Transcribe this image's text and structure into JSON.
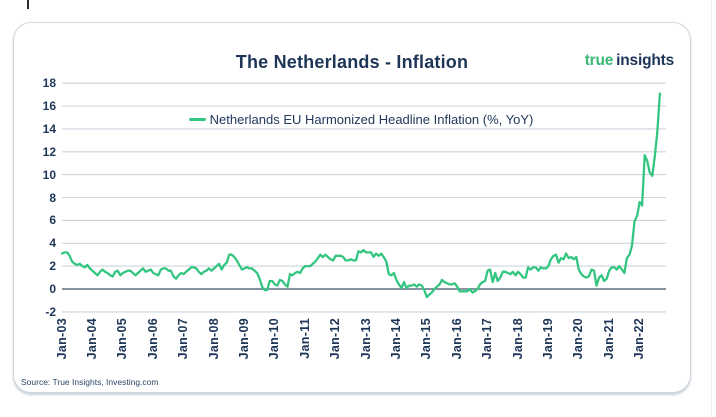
{
  "card": {
    "title": "The Netherlands - Inflation",
    "logo": {
      "word1": "true",
      "word2": "insights"
    },
    "source_note": "Source: True Insights, Investing.com"
  },
  "colors": {
    "line_green": "#34c681",
    "logo_green": "#3cb878",
    "navy": "#1d3557",
    "grid": "#ccd4dd",
    "zero_line": "#5f7082",
    "card_border": "#cfd6de"
  },
  "chart_data": {
    "type": "line",
    "title": "The Netherlands - Inflation",
    "xlabel": "",
    "ylabel": "",
    "ylim": [
      -2,
      18
    ],
    "y_ticks": [
      18,
      16,
      14,
      12,
      10,
      8,
      6,
      4,
      2,
      0,
      -2
    ],
    "grid": "horizontal",
    "legend_position": "top-center",
    "x_tick_labels": [
      "Jan-03",
      "Jan-04",
      "Jan-05",
      "Jan-06",
      "Jan-07",
      "Jan-08",
      "Jan-09",
      "Jan-10",
      "Jan-11",
      "Jan-12",
      "Jan-13",
      "Jan-14",
      "Jan-15",
      "Jan-16",
      "Jan-17",
      "Jan-18",
      "Jan-19",
      "Jan-20",
      "Jan-21",
      "Jan-22"
    ],
    "frequency": "monthly",
    "x_start": "Jan-03",
    "x_end": "Sep-22",
    "series": [
      {
        "name": "Netherlands EU Harmonized Headline Inflation (%, YoY)",
        "values": [
          3.1,
          3.2,
          3.2,
          2.9,
          2.4,
          2.2,
          2.1,
          2.2,
          2.0,
          1.9,
          2.1,
          1.8,
          1.6,
          1.4,
          1.2,
          1.5,
          1.7,
          1.5,
          1.4,
          1.2,
          1.1,
          1.5,
          1.6,
          1.2,
          1.4,
          1.5,
          1.6,
          1.6,
          1.4,
          1.2,
          1.4,
          1.6,
          1.8,
          1.5,
          1.6,
          1.7,
          1.4,
          1.3,
          1.2,
          1.7,
          1.8,
          1.8,
          1.6,
          1.6,
          1.1,
          0.9,
          1.2,
          1.4,
          1.3,
          1.5,
          1.7,
          1.9,
          1.9,
          1.8,
          1.5,
          1.3,
          1.5,
          1.6,
          1.8,
          1.6,
          1.8,
          2.0,
          2.2,
          1.7,
          2.1,
          2.3,
          3.0,
          3.0,
          2.8,
          2.5,
          2.1,
          1.7,
          1.8,
          1.9,
          1.8,
          1.8,
          1.6,
          1.4,
          0.9,
          0.2,
          -0.1,
          -0.1,
          0.7,
          0.7,
          0.4,
          0.3,
          0.8,
          0.7,
          0.4,
          0.2,
          1.3,
          1.2,
          1.4,
          1.5,
          1.4,
          1.8,
          2.0,
          2.0,
          2.0,
          2.2,
          2.4,
          2.7,
          3.0,
          2.8,
          3.0,
          2.8,
          2.6,
          2.5,
          2.9,
          2.9,
          2.9,
          2.8,
          2.5,
          2.5,
          2.6,
          2.5,
          2.5,
          3.3,
          3.2,
          3.4,
          3.2,
          3.2,
          3.2,
          2.8,
          3.1,
          2.9,
          3.1,
          2.8,
          2.4,
          1.3,
          1.2,
          1.4,
          0.8,
          0.4,
          0.1,
          0.6,
          0.1,
          0.3,
          0.3,
          0.4,
          0.2,
          0.4,
          0.3,
          -0.1,
          -0.7,
          -0.5,
          -0.3,
          0.0,
          0.2,
          0.4,
          0.8,
          0.6,
          0.5,
          0.4,
          0.4,
          0.5,
          0.2,
          -0.2,
          -0.2,
          -0.2,
          -0.2,
          0.0,
          -0.3,
          -0.2,
          0.0,
          0.4,
          0.6,
          0.7,
          1.6,
          1.7,
          0.6,
          1.4,
          0.7,
          1.0,
          1.5,
          1.5,
          1.4,
          1.3,
          1.5,
          1.2,
          1.5,
          1.3,
          1.0,
          1.0,
          1.9,
          1.7,
          1.9,
          1.9,
          1.6,
          1.9,
          1.8,
          1.8,
          2.0,
          2.6,
          2.9,
          3.0,
          2.3,
          2.7,
          2.6,
          3.1,
          2.7,
          2.8,
          2.6,
          2.8,
          1.7,
          1.3,
          1.1,
          1.0,
          1.1,
          1.7,
          1.6,
          0.3,
          1.0,
          1.2,
          0.7,
          0.9,
          1.6,
          1.9,
          1.9,
          1.7,
          2.0,
          1.7,
          1.4,
          2.7,
          3.0,
          3.8,
          5.9,
          6.4,
          7.6,
          7.3,
          11.7,
          11.2,
          10.2,
          9.9,
          11.6,
          13.7,
          17.1
        ]
      }
    ]
  }
}
